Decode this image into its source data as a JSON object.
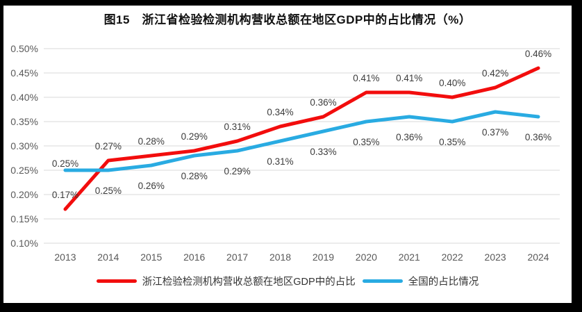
{
  "chart_data": {
    "type": "line",
    "title": "图15　浙江省检验检测机构营收总额在地区GDP中的占比情况（%）",
    "categories": [
      "2013",
      "2014",
      "2015",
      "2016",
      "2017",
      "2018",
      "2019",
      "2020",
      "2021",
      "2022",
      "2023",
      "2024"
    ],
    "series": [
      {
        "name": "浙江检验检测机构营收总额在地区GDP中的占比",
        "color": "#F20D0D",
        "values": [
          0.17,
          0.27,
          0.28,
          0.29,
          0.31,
          0.34,
          0.36,
          0.41,
          0.41,
          0.4,
          0.42,
          0.46
        ],
        "data_labels": [
          "0.17%",
          "0.27%",
          "0.28%",
          "0.29%",
          "0.31%",
          "0.34%",
          "0.36%",
          "0.41%",
          "0.41%",
          "0.40%",
          "0.42%",
          "0.46%"
        ],
        "label_position": "above"
      },
      {
        "name": "全国的占比情况",
        "color": "#29ABE2",
        "values": [
          0.25,
          0.25,
          0.26,
          0.28,
          0.29,
          0.31,
          0.33,
          0.35,
          0.36,
          0.35,
          0.37,
          0.36
        ],
        "data_labels": [
          "0.25%",
          "0.25%",
          "0.26%",
          "0.28%",
          "0.29%",
          "0.31%",
          "0.33%",
          "0.35%",
          "0.36%",
          "0.35%",
          "0.37%",
          "0.36%"
        ],
        "label_position": "below",
        "label_position_overrides": {
          "0": "above"
        }
      }
    ],
    "y_axis": {
      "min": 0.1,
      "max": 0.5,
      "step": 0.05,
      "tick_labels": [
        "0.50%",
        "0.45%",
        "0.40%",
        "0.35%",
        "0.30%",
        "0.25%",
        "0.20%",
        "0.15%",
        "0.10%"
      ]
    },
    "grid": true,
    "legend_position": "bottom",
    "colors": {
      "gridline": "#D9D9D9",
      "axis_text": "#595959",
      "data_label_text": "#3B3B3B",
      "frame": "#000000",
      "background": "#FFFFFF"
    }
  }
}
